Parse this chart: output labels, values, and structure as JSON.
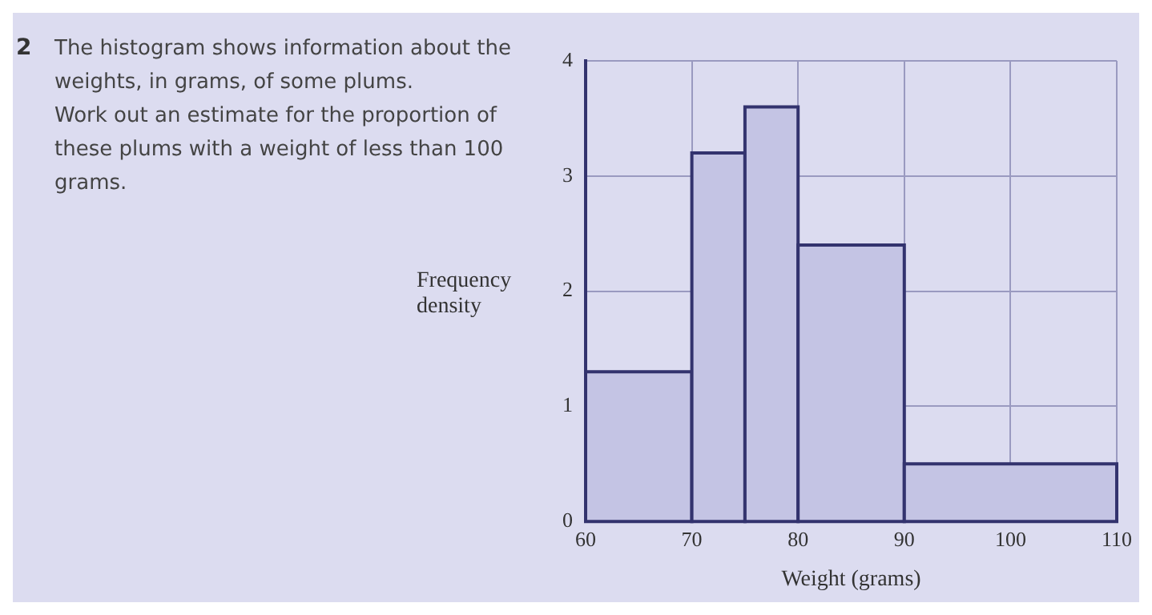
{
  "chart_data": {
    "type": "histogram",
    "title": "The histogram shows information about the weights, in grams, of some plums.",
    "subtitle": "Work out an estimate for the proportion of these plums with a weight of less than 100 grams.",
    "annotations": [
      "2"
    ],
    "xlabel": "Weight (grams)",
    "ylabel": "Frequency density",
    "bins": [
      60,
      70,
      75,
      80,
      90,
      110
    ],
    "values": [
      1.3,
      3.2,
      3.6,
      2.4,
      0.5
    ],
    "color": "#c4c4e4",
    "xlim": [
      60,
      110
    ],
    "xticks": [
      60,
      70,
      80,
      90,
      100,
      110
    ],
    "ylim": [
      0,
      4
    ],
    "yticks": [
      0,
      1,
      2,
      3,
      4
    ],
    "grid": true,
    "legend": false
  }
}
